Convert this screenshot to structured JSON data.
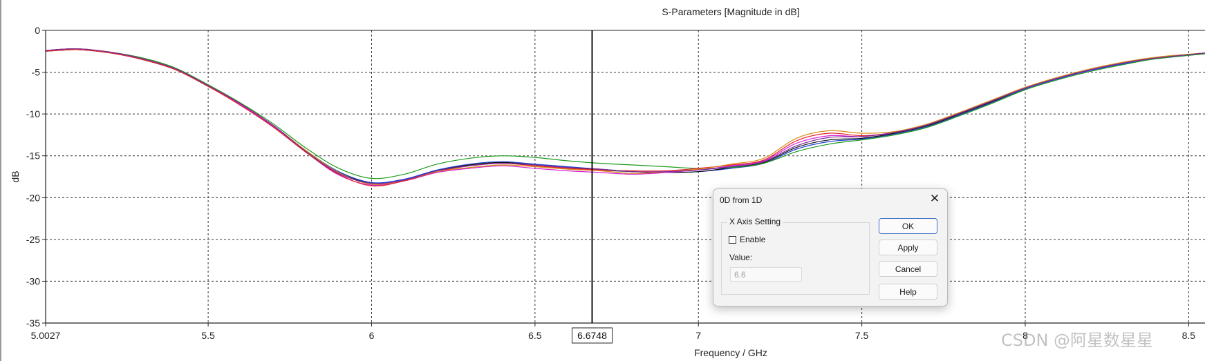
{
  "chart_data": {
    "type": "line",
    "title": "S-Parameters [Magnitude in dB]",
    "xlabel": "Frequency / GHz",
    "ylabel": "dB",
    "xlim": [
      5.0027,
      8.55
    ],
    "ylim": [
      -35,
      0
    ],
    "x_ticks": [
      "5.0027",
      "5.5",
      "6",
      "6.5",
      "7",
      "7.5",
      "8",
      "8.5"
    ],
    "x_tick_values": [
      5.0027,
      5.5,
      6,
      6.5,
      7,
      7.5,
      8,
      8.5
    ],
    "y_ticks": [
      "0",
      "-5",
      "-10",
      "-15",
      "-20",
      "-25",
      "-30",
      "-35"
    ],
    "y_tick_values": [
      0,
      -5,
      -10,
      -15,
      -20,
      -25,
      -30,
      -35
    ],
    "grid": true,
    "marker": {
      "x": 6.6748,
      "label": "6.6748"
    },
    "x": [
      5.0027,
      5.1,
      5.2,
      5.3,
      5.4,
      5.5,
      5.6,
      5.7,
      5.8,
      5.9,
      6.0,
      6.1,
      6.2,
      6.3,
      6.4,
      6.5,
      6.6,
      6.7,
      6.8,
      6.9,
      7.0,
      7.1,
      7.2,
      7.3,
      7.4,
      7.5,
      7.6,
      7.7,
      7.8,
      7.9,
      8.0,
      8.1,
      8.2,
      8.3,
      8.4,
      8.55
    ],
    "series": [
      {
        "color": "#1f3fd8",
        "values": [
          -2.4,
          -2.2,
          -2.6,
          -3.4,
          -4.6,
          -6.6,
          -8.8,
          -11.4,
          -14.4,
          -16.9,
          -18.2,
          -17.8,
          -16.7,
          -16.0,
          -15.7,
          -16.0,
          -16.3,
          -16.6,
          -16.9,
          -17.0,
          -16.9,
          -16.5,
          -15.9,
          -14.2,
          -13.3,
          -13.0,
          -12.4,
          -11.5,
          -10.1,
          -8.6,
          -7.0,
          -5.8,
          -4.8,
          -4.0,
          -3.4,
          -2.8
        ]
      },
      {
        "color": "#111111",
        "values": [
          -2.5,
          -2.3,
          -2.7,
          -3.5,
          -4.7,
          -6.7,
          -8.9,
          -11.5,
          -14.5,
          -17.0,
          -18.3,
          -17.9,
          -16.8,
          -16.1,
          -15.8,
          -16.1,
          -16.4,
          -16.7,
          -16.9,
          -17.0,
          -16.9,
          -16.4,
          -15.8,
          -14.0,
          -13.1,
          -12.9,
          -12.3,
          -11.4,
          -10.0,
          -8.5,
          -6.9,
          -5.7,
          -4.7,
          -3.9,
          -3.3,
          -2.8
        ]
      },
      {
        "color": "#1a9a1a",
        "values": [
          -2.4,
          -2.2,
          -2.6,
          -3.3,
          -4.5,
          -6.5,
          -8.7,
          -11.2,
          -14.1,
          -16.5,
          -17.7,
          -17.2,
          -16.0,
          -15.3,
          -15.0,
          -15.2,
          -15.6,
          -15.9,
          -16.1,
          -16.3,
          -16.5,
          -16.4,
          -15.9,
          -14.5,
          -13.6,
          -13.1,
          -12.5,
          -11.6,
          -10.2,
          -8.7,
          -7.1,
          -5.9,
          -4.9,
          -4.1,
          -3.4,
          -2.8
        ]
      },
      {
        "color": "#d81ed8",
        "values": [
          -2.4,
          -2.2,
          -2.6,
          -3.4,
          -4.6,
          -6.6,
          -8.9,
          -11.5,
          -14.6,
          -17.3,
          -18.5,
          -18.0,
          -17.0,
          -16.5,
          -16.2,
          -16.5,
          -16.8,
          -17.0,
          -17.2,
          -17.0,
          -16.7,
          -16.2,
          -15.6,
          -13.5,
          -12.6,
          -12.7,
          -12.2,
          -11.3,
          -9.9,
          -8.4,
          -6.9,
          -5.7,
          -4.7,
          -3.9,
          -3.3,
          -2.7
        ]
      },
      {
        "color": "#e8202a",
        "values": [
          -2.5,
          -2.3,
          -2.7,
          -3.5,
          -4.7,
          -6.7,
          -9.0,
          -11.6,
          -14.6,
          -17.2,
          -18.6,
          -18.0,
          -16.9,
          -16.2,
          -15.9,
          -16.2,
          -16.5,
          -16.7,
          -16.8,
          -16.8,
          -16.5,
          -16.1,
          -15.5,
          -13.2,
          -12.3,
          -12.6,
          -12.2,
          -11.3,
          -9.9,
          -8.4,
          -6.9,
          -5.7,
          -4.7,
          -3.9,
          -3.3,
          -2.7
        ]
      },
      {
        "color": "#d88a10",
        "values": [
          -2.4,
          -2.2,
          -2.6,
          -3.4,
          -4.6,
          -6.6,
          -8.8,
          -11.4,
          -14.4,
          -17.0,
          -18.4,
          -17.9,
          -16.9,
          -16.4,
          -16.1,
          -16.3,
          -16.6,
          -16.8,
          -17.1,
          -16.9,
          -16.6,
          -16.0,
          -15.3,
          -12.9,
          -12.0,
          -12.3,
          -12.1,
          -11.2,
          -9.8,
          -8.3,
          -6.8,
          -5.6,
          -4.6,
          -3.8,
          -3.2,
          -2.7
        ]
      },
      {
        "color": "#7a2a9a",
        "values": [
          -2.4,
          -2.2,
          -2.6,
          -3.4,
          -4.6,
          -6.6,
          -8.8,
          -11.4,
          -14.5,
          -17.1,
          -18.3,
          -17.9,
          -16.8,
          -16.2,
          -15.9,
          -16.1,
          -16.4,
          -16.6,
          -16.9,
          -16.9,
          -16.7,
          -16.3,
          -15.7,
          -13.8,
          -12.8,
          -12.7,
          -12.2,
          -11.3,
          -9.9,
          -8.4,
          -6.9,
          -5.7,
          -4.7,
          -3.9,
          -3.3,
          -2.7
        ]
      }
    ]
  },
  "dialog": {
    "title": "0D from 1D",
    "group_title": "X Axis Setting",
    "enable_label": "Enable",
    "enable_checked": false,
    "value_label": "Value:",
    "value": "6.6",
    "buttons": {
      "ok": "OK",
      "apply": "Apply",
      "cancel": "Cancel",
      "help": "Help"
    }
  },
  "watermark": "CSDN @阿星数星星"
}
